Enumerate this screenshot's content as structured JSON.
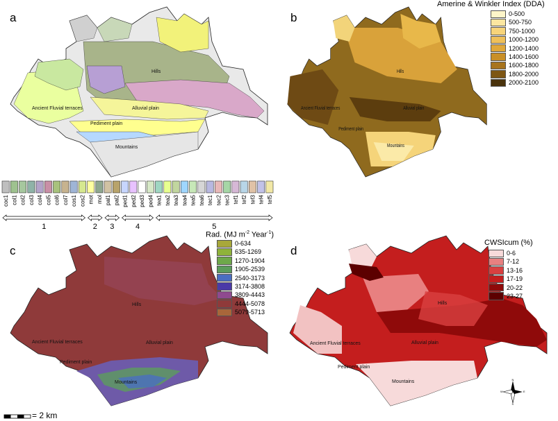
{
  "panels": {
    "a": {
      "letter": "a"
    },
    "b": {
      "letter": "b",
      "legend_title": "Amerine & Winkler Index (DDA)"
    },
    "c": {
      "letter": "c",
      "legend_title_pre": "Rad. (MJ m",
      "legend_title_sup": "-2",
      "legend_title_mid": " Year",
      "legend_title_sup2": "-1",
      "legend_title_post": ")"
    },
    "d": {
      "letter": "d",
      "legend_title": "CWSIcum (%)"
    }
  },
  "map_labels": {
    "hills": "Hills",
    "ancient_fluvial_terraces": "Ancient Fluvial terraces",
    "alluvial_plain": "Alluvial plain",
    "pediment_plain": "Pediment plain",
    "mountains": "Mountains"
  },
  "soil_legend": {
    "codes": [
      "coc1",
      "col1",
      "col2",
      "col3",
      "col4",
      "col5",
      "col6",
      "col7",
      "cos1",
      "cos2",
      "mot",
      "mol",
      "pal1",
      "pal2",
      "ped1",
      "ped2",
      "ped3",
      "ped4",
      "tea1",
      "tea2",
      "tea3",
      "tea4",
      "tea5",
      "tea6",
      "tec1",
      "tec2",
      "tec3",
      "tef1",
      "tef2",
      "tef3",
      "tef4",
      "tef5"
    ],
    "colors": [
      "#bfbfbf",
      "#9ec28f",
      "#a6c79e",
      "#8fb3a8",
      "#b3a3c9",
      "#c98fa6",
      "#a8c27d",
      "#c7b38f",
      "#9fb5d6",
      "#d6e88f",
      "#ffffa0",
      "#8fa88f",
      "#d1c2a3",
      "#b8a36b",
      "#c7d6ff",
      "#e8c2ff",
      "#ffffff",
      "#d6e8c7",
      "#9fd6c2",
      "#e8ff8f",
      "#c2d69f",
      "#9fd6ff",
      "#c7e8b8",
      "#d6d6d6",
      "#b8b8e0",
      "#e8b8b8",
      "#a6d6a6",
      "#d6b8d6",
      "#b8d6e8",
      "#e0c2a6",
      "#c2c2e8",
      "#f2e8a6"
    ],
    "groups": [
      {
        "label": "1",
        "start": 0,
        "end": 9
      },
      {
        "label": "2",
        "start": 10,
        "end": 11
      },
      {
        "label": "3",
        "start": 12,
        "end": 13
      },
      {
        "label": "4",
        "start": 14,
        "end": 17
      },
      {
        "label": "5",
        "start": 18,
        "end": 31
      }
    ]
  },
  "legend_b": {
    "items": [
      {
        "label": "0-500",
        "color": "#fdf5c9"
      },
      {
        "label": "500-750",
        "color": "#fbe6a0"
      },
      {
        "label": "750-1000",
        "color": "#f7d47a"
      },
      {
        "label": "1000-1200",
        "color": "#efc05a"
      },
      {
        "label": "1200-1400",
        "color": "#e0a83a"
      },
      {
        "label": "1400-1600",
        "color": "#c98f27"
      },
      {
        "label": "1600-1800",
        "color": "#a8741d"
      },
      {
        "label": "1800-2000",
        "color": "#7d5614"
      },
      {
        "label": "2000-2100",
        "color": "#4a330c"
      }
    ]
  },
  "legend_c": {
    "items": [
      {
        "label": "0-634",
        "color": "#a8a83a"
      },
      {
        "label": "635-1269",
        "color": "#8fb33a"
      },
      {
        "label": "1270-1904",
        "color": "#6ea84a"
      },
      {
        "label": "1905-2539",
        "color": "#5c9c5c"
      },
      {
        "label": "2540-3173",
        "color": "#4a6ec2"
      },
      {
        "label": "3174-3808",
        "color": "#4a3aa8"
      },
      {
        "label": "3809-4443",
        "color": "#8f4a8f"
      },
      {
        "label": "4444-5078",
        "color": "#8f3a3a"
      },
      {
        "label": "5079-5713",
        "color": "#a8663a"
      }
    ]
  },
  "legend_d": {
    "items": [
      {
        "label": "0-6",
        "color": "#f7dada"
      },
      {
        "label": "7-12",
        "color": "#e88080"
      },
      {
        "label": "13-16",
        "color": "#d94040"
      },
      {
        "label": "17-19",
        "color": "#c41e1e"
      },
      {
        "label": "20-22",
        "color": "#8f0a0a"
      },
      {
        "label": "23-27",
        "color": "#5c0000"
      }
    ]
  },
  "scale_bar": {
    "label": "= 2 km"
  },
  "north_arrow": {
    "n": "N",
    "s": "S",
    "e": "E",
    "w": "W"
  }
}
